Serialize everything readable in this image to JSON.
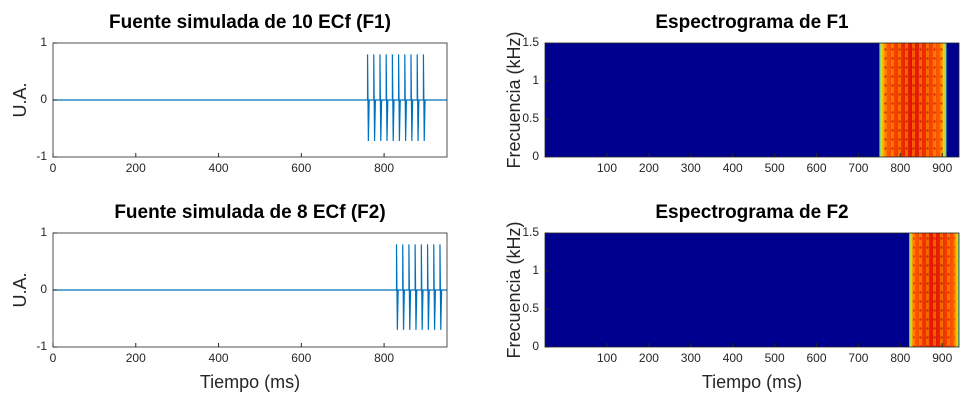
{
  "chart_data": [
    {
      "type": "line",
      "title": "Fuente simulada de 10 ECf (F1)",
      "ylabel": "U.A.",
      "color": "#0072bd",
      "xlim": [
        0,
        952
      ],
      "xticks": [
        0,
        200,
        400,
        600,
        800
      ],
      "ylim": [
        -1,
        1
      ],
      "yticks": [
        -1,
        0,
        1
      ],
      "x": [
        0,
        760,
        760,
        762,
        764,
        775,
        775,
        777,
        779,
        790,
        790,
        792,
        794,
        805,
        805,
        807,
        809,
        820,
        820,
        822,
        824,
        835,
        835,
        837,
        839,
        850,
        850,
        852,
        854,
        865,
        865,
        867,
        869,
        880,
        880,
        882,
        884,
        895,
        895,
        897,
        899,
        952
      ],
      "values": [
        0,
        0,
        0.8,
        -0.72,
        0,
        0,
        0.8,
        -0.72,
        0,
        0,
        0.8,
        -0.72,
        0,
        0,
        0.8,
        -0.72,
        0,
        0,
        0.8,
        -0.72,
        0,
        0,
        0.8,
        -0.72,
        0,
        0,
        0.8,
        -0.72,
        0,
        0,
        0.8,
        -0.72,
        0,
        0,
        0.8,
        -0.72,
        0,
        0,
        0.8,
        -0.72,
        0,
        0
      ]
    },
    {
      "type": "spectrogram",
      "title": "Espectrograma de F1",
      "ylabel": "Frecuencia (kHz)",
      "color": "#00008f",
      "xlim": [
        -48,
        940
      ],
      "xticks": [
        100,
        200,
        300,
        400,
        500,
        600,
        700,
        800,
        900
      ],
      "ylim": [
        0,
        1.5
      ],
      "yticks": [
        0,
        0.5,
        1,
        1.5
      ],
      "active_range": [
        750,
        910
      ]
    },
    {
      "type": "line",
      "title": "Fuente simulada de 8 ECf (F2)",
      "ylabel": "U.A.",
      "xlabel": "Tiempo (ms)",
      "color": "#0072bd",
      "xlim": [
        0,
        952
      ],
      "xticks": [
        0,
        200,
        400,
        600,
        800
      ],
      "ylim": [
        -1,
        1
      ],
      "yticks": [
        -1,
        0,
        1
      ],
      "x": [
        0,
        830,
        830,
        832,
        834,
        845,
        845,
        847,
        849,
        860,
        860,
        862,
        864,
        875,
        875,
        877,
        879,
        890,
        890,
        892,
        894,
        905,
        905,
        907,
        909,
        920,
        920,
        922,
        924,
        935,
        935,
        937,
        939,
        952
      ],
      "values": [
        0,
        0,
        0.8,
        -0.7,
        0,
        0,
        0.8,
        -0.7,
        0,
        0,
        0.8,
        -0.7,
        0,
        0,
        0.8,
        -0.7,
        0,
        0,
        0.8,
        -0.7,
        0,
        0,
        0.8,
        -0.7,
        0,
        0,
        0.8,
        -0.7,
        0,
        0,
        0.8,
        -0.7,
        0,
        0
      ]
    },
    {
      "type": "spectrogram",
      "title": "Espectrograma de F2",
      "ylabel": "Frecuencia (kHz)",
      "xlabel": "Tiempo (ms)",
      "color": "#00008f",
      "xlim": [
        -48,
        940
      ],
      "xticks": [
        100,
        200,
        300,
        400,
        500,
        600,
        700,
        800,
        900
      ],
      "ylim": [
        0,
        1.5
      ],
      "yticks": [
        0,
        0.5,
        1,
        1.5
      ],
      "active_range": [
        821,
        950
      ]
    }
  ]
}
